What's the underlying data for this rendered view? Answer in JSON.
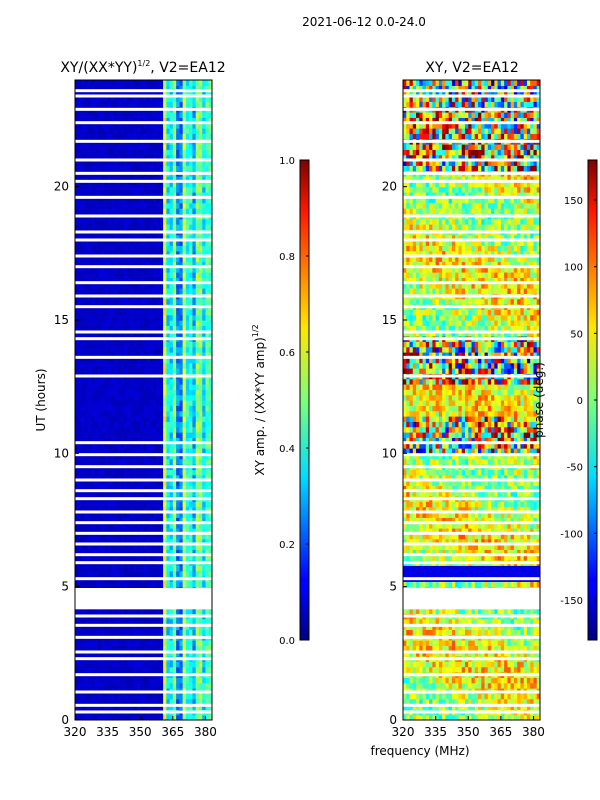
{
  "suptitle": "2021-06-12 0.0-24.0",
  "xlabel_shared": "frequency (MHz)",
  "ylabel_shared": "UT (hours)",
  "colors": {
    "white": "#ffffff",
    "black": "#000000"
  },
  "chart_data": [
    {
      "type": "heatmap",
      "title_main": "XY/(XX*YY)",
      "title_sup": "1/2",
      "title_tail": ", V2=EA12",
      "xlabel": "frequency (MHz)",
      "ylabel": "UT (hours)",
      "xlim": [
        320,
        383
      ],
      "ylim": [
        0,
        24
      ],
      "xticks": [
        320,
        335,
        350,
        365,
        380
      ],
      "yticks": [
        0,
        5,
        10,
        15,
        20
      ],
      "colormap": "jet",
      "colorbar": {
        "label_main": "XY amp. / (XX*YY amp)",
        "label_sup": "1/2",
        "range": [
          0.0,
          1.0
        ],
        "ticks": [
          "0.0",
          "0.2",
          "0.4",
          "0.6",
          "0.8",
          "1.0"
        ]
      },
      "description": "amplitude mostly ~0 below 360 MHz, 0.3-0.6 (cyan/green/yellow) in 360-383 MHz band"
    },
    {
      "type": "heatmap",
      "title": "XY, V2=EA12",
      "xlabel": "frequency (MHz)",
      "ylabel": "",
      "xlim": [
        320,
        383
      ],
      "ylim": [
        0,
        24
      ],
      "xticks": [
        320,
        335,
        350,
        365,
        380
      ],
      "yticks": [
        0,
        5,
        10,
        15,
        20
      ],
      "colormap": "jet",
      "colorbar": {
        "label": "phase (deg.)",
        "range": [
          -180,
          180
        ],
        "ticks": [
          150,
          100,
          50,
          0,
          -50,
          -100,
          -150
        ]
      },
      "description": "phase mostly 0-60 deg (yellow/green) with noisy patches spanning full range"
    }
  ]
}
